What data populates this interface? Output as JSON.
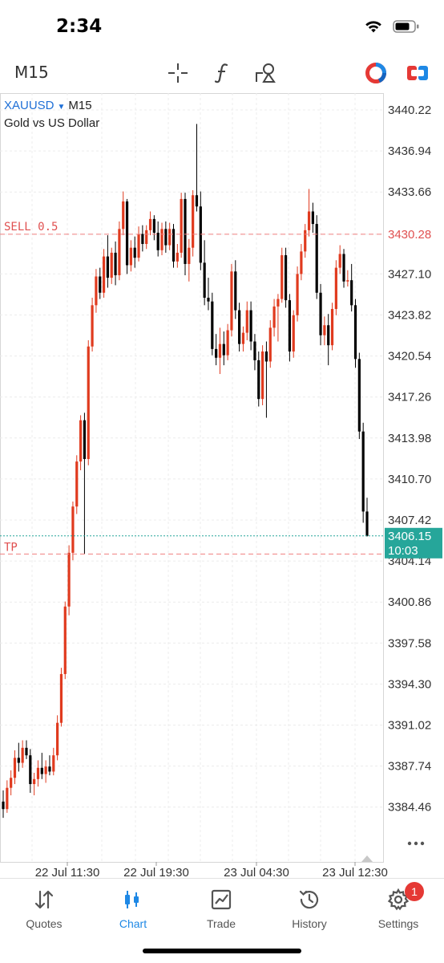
{
  "status": {
    "time": "2:34"
  },
  "toolbar": {
    "timeframe": "M15",
    "icons": [
      "crosshair-icon",
      "function-icon",
      "objects-icon",
      "palette-icon",
      "trade-icon"
    ]
  },
  "chart": {
    "symbol": "XAUUSD",
    "timeframe": "M15",
    "description": "Gold vs US Dollar",
    "sell_label": "SELL 0.5",
    "tp_label": "TP",
    "sell_price": 3430.28,
    "tp_price": 3404.7,
    "current_price_label": "3406.15",
    "countdown": "10:03",
    "colors": {
      "bull": "#e03a1e",
      "bear": "#000000",
      "sell_line": "#f08080",
      "bid_line": "#26a69a",
      "grid": "#ececec"
    }
  },
  "chart_data": {
    "type": "candlestick",
    "symbol": "XAUUSD",
    "timeframe": "M15",
    "y_ticks": [
      "3440.22",
      "3436.94",
      "3433.66",
      "3430.28",
      "3427.10",
      "3423.82",
      "3420.54",
      "3417.26",
      "3413.98",
      "3410.70",
      "3407.42",
      "3404.14",
      "3400.86",
      "3397.58",
      "3394.30",
      "3391.02",
      "3387.74",
      "3384.46"
    ],
    "x_ticks": [
      "22 Jul 11:30",
      "22 Jul 19:30",
      "23 Jul 04:30",
      "23 Jul 12:30"
    ],
    "ylim": [
      3382.5,
      3442.0
    ],
    "candles": [
      [
        3384.9,
        3385.8,
        3383.6,
        3384.3
      ],
      [
        3384.3,
        3386.6,
        3384.0,
        3386.0
      ],
      [
        3386.0,
        3387.4,
        3385.4,
        3386.8
      ],
      [
        3386.8,
        3389.0,
        3386.3,
        3388.4
      ],
      [
        3388.4,
        3389.6,
        3387.3,
        3388.0
      ],
      [
        3388.0,
        3389.8,
        3387.6,
        3389.2
      ],
      [
        3389.2,
        3389.8,
        3388.3,
        3388.6
      ],
      [
        3388.6,
        3389.1,
        3385.6,
        3386.3
      ],
      [
        3386.3,
        3387.2,
        3385.4,
        3386.7
      ],
      [
        3386.7,
        3388.2,
        3386.1,
        3387.6
      ],
      [
        3387.6,
        3388.8,
        3386.7,
        3387.1
      ],
      [
        3387.1,
        3388.2,
        3386.4,
        3387.7
      ],
      [
        3387.7,
        3388.6,
        3387.0,
        3387.3
      ],
      [
        3387.3,
        3389.2,
        3387.0,
        3388.6
      ],
      [
        3388.6,
        3391.8,
        3388.2,
        3391.2
      ],
      [
        3391.2,
        3395.6,
        3390.9,
        3395.1
      ],
      [
        3395.1,
        3400.9,
        3394.7,
        3400.5
      ],
      [
        3400.5,
        3405.4,
        3399.8,
        3404.8
      ],
      [
        3404.8,
        3408.9,
        3404.2,
        3408.5
      ],
      [
        3408.5,
        3412.6,
        3407.9,
        3412.1
      ],
      [
        3412.1,
        3415.8,
        3411.4,
        3415.4
      ],
      [
        3415.4,
        3416.0,
        3404.7,
        3412.3
      ],
      [
        3412.3,
        3421.8,
        3411.8,
        3421.3
      ],
      [
        3421.3,
        3425.2,
        3420.9,
        3424.6
      ],
      [
        3424.6,
        3427.5,
        3424.0,
        3426.9
      ],
      [
        3426.9,
        3427.6,
        3425.1,
        3425.6
      ],
      [
        3425.6,
        3429.1,
        3425.2,
        3428.5
      ],
      [
        3428.5,
        3430.2,
        3426.0,
        3426.8
      ],
      [
        3426.8,
        3429.2,
        3426.3,
        3428.8
      ],
      [
        3428.8,
        3429.7,
        3426.2,
        3427.0
      ],
      [
        3427.0,
        3431.3,
        3426.6,
        3430.7
      ],
      [
        3430.7,
        3433.7,
        3430.2,
        3432.9
      ],
      [
        3432.9,
        3433.1,
        3427.1,
        3427.8
      ],
      [
        3427.8,
        3429.8,
        3427.3,
        3429.2
      ],
      [
        3429.2,
        3430.1,
        3427.6,
        3428.4
      ],
      [
        3428.4,
        3430.9,
        3428.1,
        3430.3
      ],
      [
        3430.3,
        3431.0,
        3428.9,
        3429.5
      ],
      [
        3429.5,
        3431.0,
        3429.1,
        3430.6
      ],
      [
        3430.6,
        3432.1,
        3430.2,
        3431.5
      ],
      [
        3431.5,
        3431.8,
        3429.8,
        3430.4
      ],
      [
        3430.4,
        3431.3,
        3428.5,
        3429.0
      ],
      [
        3429.0,
        3431.2,
        3428.6,
        3430.7
      ],
      [
        3430.7,
        3431.3,
        3428.8,
        3429.4
      ],
      [
        3429.4,
        3431.2,
        3429.0,
        3430.7
      ],
      [
        3430.7,
        3431.1,
        3427.6,
        3428.1
      ],
      [
        3428.1,
        3429.5,
        3427.6,
        3428.8
      ],
      [
        3428.8,
        3433.6,
        3428.4,
        3433.1
      ],
      [
        3433.1,
        3433.6,
        3427.0,
        3427.9
      ],
      [
        3427.9,
        3429.9,
        3426.5,
        3429.2
      ],
      [
        3429.2,
        3433.8,
        3428.5,
        3433.4
      ],
      [
        3433.4,
        3439.1,
        3432.1,
        3432.5
      ],
      [
        3432.5,
        3433.7,
        3427.4,
        3428.0
      ],
      [
        3428.0,
        3429.8,
        3424.6,
        3425.2
      ],
      [
        3425.2,
        3426.8,
        3424.2,
        3424.9
      ],
      [
        3424.9,
        3425.6,
        3420.6,
        3421.1
      ],
      [
        3421.1,
        3422.3,
        3419.8,
        3420.4
      ],
      [
        3420.4,
        3422.8,
        3419.1,
        3421.5
      ],
      [
        3421.5,
        3422.5,
        3419.8,
        3420.6
      ],
      [
        3420.6,
        3423.1,
        3420.2,
        3422.6
      ],
      [
        3422.6,
        3427.9,
        3422.1,
        3427.3
      ],
      [
        3427.3,
        3428.2,
        3423.5,
        3424.2
      ],
      [
        3424.2,
        3424.8,
        3420.9,
        3421.5
      ],
      [
        3421.5,
        3422.9,
        3420.9,
        3422.4
      ],
      [
        3422.4,
        3424.9,
        3421.8,
        3424.2
      ],
      [
        3424.2,
        3424.9,
        3421.0,
        3421.7
      ],
      [
        3421.7,
        3422.3,
        3419.4,
        3420.2
      ],
      [
        3420.2,
        3420.9,
        3416.5,
        3417.1
      ],
      [
        3417.1,
        3421.4,
        3416.6,
        3420.9
      ],
      [
        3420.9,
        3421.7,
        3415.6,
        3420.1
      ],
      [
        3420.1,
        3423.4,
        3419.6,
        3422.8
      ],
      [
        3422.8,
        3425.1,
        3422.1,
        3424.5
      ],
      [
        3424.5,
        3425.5,
        3421.7,
        3425.1
      ],
      [
        3425.1,
        3429.2,
        3424.8,
        3428.6
      ],
      [
        3428.6,
        3429.2,
        3424.4,
        3425.0
      ],
      [
        3425.0,
        3425.5,
        3420.1,
        3420.9
      ],
      [
        3420.9,
        3424.2,
        3420.4,
        3423.8
      ],
      [
        3423.8,
        3427.7,
        3423.3,
        3427.1
      ],
      [
        3427.1,
        3429.5,
        3426.6,
        3428.9
      ],
      [
        3428.9,
        3431.1,
        3428.4,
        3430.6
      ],
      [
        3430.6,
        3433.9,
        3430.1,
        3432.1
      ],
      [
        3432.1,
        3432.8,
        3430.4,
        3431.1
      ],
      [
        3431.1,
        3431.8,
        3425.1,
        3425.6
      ],
      [
        3425.6,
        3426.3,
        3421.4,
        3422.2
      ],
      [
        3422.2,
        3423.7,
        3421.4,
        3423.0
      ],
      [
        3423.0,
        3423.9,
        3419.8,
        3421.4
      ],
      [
        3421.4,
        3424.8,
        3421.0,
        3424.3
      ],
      [
        3424.3,
        3428.2,
        3423.8,
        3427.6
      ],
      [
        3427.6,
        3429.4,
        3427.1,
        3428.7
      ],
      [
        3428.7,
        3429.1,
        3426.0,
        3426.5
      ],
      [
        3426.5,
        3427.4,
        3426.1,
        3426.6
      ],
      [
        3426.6,
        3427.9,
        3424.1,
        3424.6
      ],
      [
        3424.6,
        3425.1,
        3419.6,
        3420.3
      ],
      [
        3420.3,
        3420.8,
        3413.9,
        3414.5
      ],
      [
        3414.5,
        3415.2,
        3407.2,
        3408.1
      ],
      [
        3408.1,
        3409.2,
        3406.1,
        3406.15
      ]
    ]
  },
  "tabs": [
    {
      "label": "Quotes",
      "icon": "quotes-icon"
    },
    {
      "label": "Chart",
      "icon": "chart-icon"
    },
    {
      "label": "Trade",
      "icon": "trade-chart-icon"
    },
    {
      "label": "History",
      "icon": "history-icon"
    },
    {
      "label": "Settings",
      "icon": "settings-icon",
      "badge": "1"
    }
  ]
}
